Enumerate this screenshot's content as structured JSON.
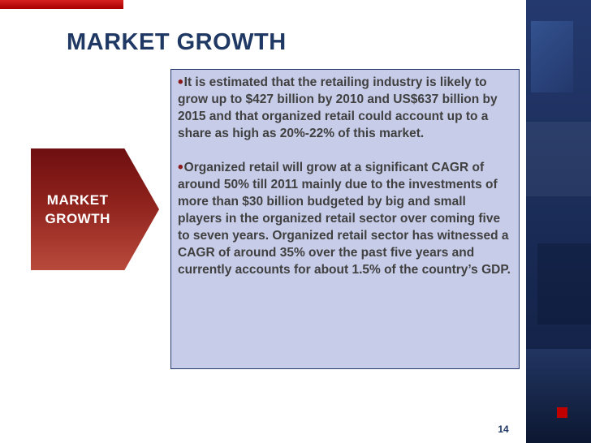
{
  "slide": {
    "title": "MARKET GROWTH",
    "arrow": {
      "line1": "MARKET",
      "line2": "GROWTH"
    },
    "bullet_glyph": "•",
    "bullets": [
      "It is estimated that the retailing industry is likely to grow up to $427 billion by 2010 and US$637 billion by 2015 and that organized retail could account up to a share as high as 20%-22% of this market.",
      "Organized retail will grow at a significant CAGR of around 50% till 2011 mainly due to the investments of more than $30 billion budgeted by big and small players in the organized retail sector over coming five to seven years. Organized retail sector has witnessed a CAGR of around 35% over the past five years and currently accounts for about 1.5% of the country’s GDP."
    ],
    "page_number": "14",
    "colors": {
      "title_text": "#1f3864",
      "body_text": "#404040",
      "box_background": "#c7cce9",
      "box_border": "#25386b",
      "arrow_gradient_top": "#6e0f11",
      "arrow_gradient_bottom": "#b84a3c",
      "accent_red": "#c00000",
      "strip_navy": "#1b2d59",
      "bullet": "#8b1a1a"
    }
  }
}
